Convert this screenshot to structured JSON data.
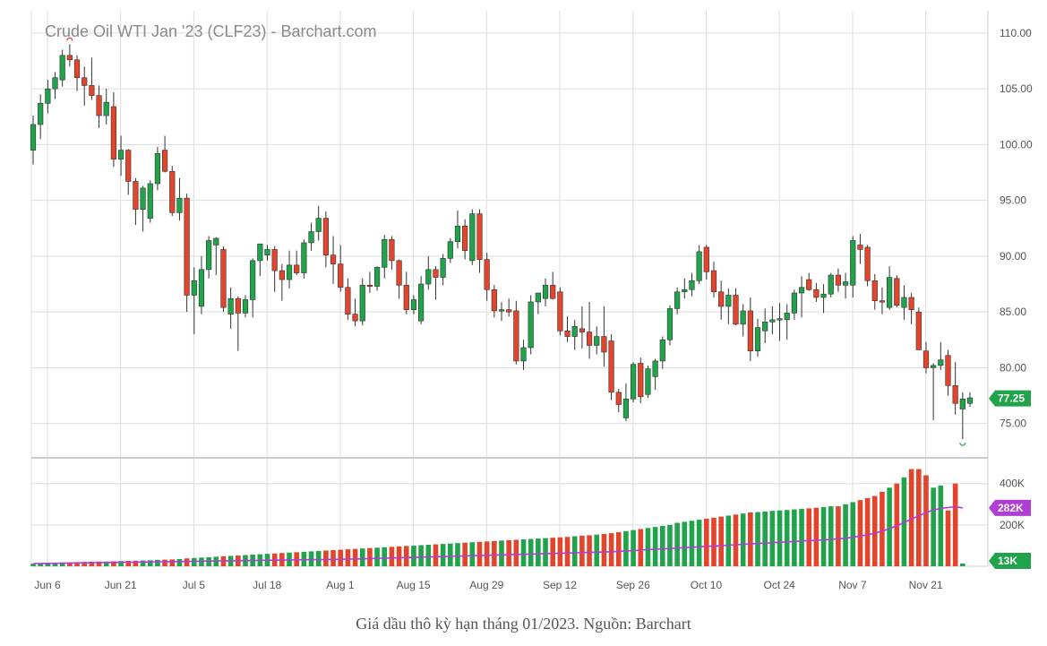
{
  "caption": "Giá dầu thô kỳ hạn tháng 01/2023. Nguồn: Barchart",
  "colors": {
    "up": "#20a34a",
    "down": "#e2452b",
    "ma": "#b03ed6",
    "grid": "#dddddd",
    "last_price_badge": "#20a34a",
    "ma_badge": "#b03ed6"
  },
  "chart_data": {
    "type": "candlestick",
    "title": "Crude Oil WTI Jan '23 (CLF23) - Barchart.com",
    "price_axis": {
      "ticks": [
        "110.00",
        "105.00",
        "100.00",
        "95.00",
        "90.00",
        "85.00",
        "80.00",
        "75.00"
      ],
      "ylim": [
        72,
        112
      ],
      "last_price": "77.25"
    },
    "volume_axis": {
      "ticks": [
        "400K",
        "200K"
      ],
      "ylim": [
        0,
        520000
      ],
      "ma_label": "282K",
      "last_volume_label": "13K"
    },
    "x_labels": [
      "Jun 6",
      "Jun 21",
      "Jul 5",
      "Jul 18",
      "Aug 1",
      "Aug 15",
      "Aug 29",
      "Sep 12",
      "Sep 26",
      "Oct 10",
      "Oct 24",
      "Nov 7",
      "Nov 21"
    ],
    "x_label_positions": [
      0,
      10,
      20,
      30,
      40,
      50,
      60,
      70,
      80,
      90,
      100,
      110,
      120
    ],
    "candles": [
      [
        99.5,
        102.6,
        98.2,
        101.8
      ],
      [
        101.8,
        104.5,
        100.5,
        103.7
      ],
      [
        103.7,
        105.8,
        102.8,
        105.0
      ],
      [
        105.0,
        106.5,
        104.1,
        106.0
      ],
      [
        105.8,
        108.5,
        105.2,
        108.0
      ],
      [
        108.0,
        109.0,
        107.0,
        107.6
      ],
      [
        107.6,
        108.0,
        104.8,
        106.0
      ],
      [
        106.0,
        107.0,
        103.5,
        105.3
      ],
      [
        105.3,
        107.8,
        104.0,
        104.4
      ],
      [
        104.4,
        105.3,
        101.5,
        102.6
      ],
      [
        102.6,
        105.0,
        101.8,
        103.8
      ],
      [
        103.4,
        104.7,
        98.0,
        98.7
      ],
      [
        98.7,
        100.8,
        97.2,
        99.5
      ],
      [
        99.5,
        99.6,
        95.5,
        96.7
      ],
      [
        96.7,
        97.0,
        92.8,
        94.2
      ],
      [
        94.2,
        96.3,
        92.2,
        96.1
      ],
      [
        93.4,
        96.8,
        93.0,
        96.5
      ],
      [
        96.5,
        99.8,
        95.9,
        99.2
      ],
      [
        99.5,
        100.8,
        97.5,
        97.6
      ],
      [
        97.6,
        98.1,
        93.6,
        93.9
      ],
      [
        93.9,
        97.0,
        93.2,
        95.2
      ],
      [
        95.2,
        95.6,
        85.0,
        86.5
      ],
      [
        86.5,
        89.0,
        83.0,
        87.8
      ],
      [
        85.5,
        90.0,
        84.8,
        88.8
      ],
      [
        88.8,
        91.8,
        88.0,
        91.4
      ],
      [
        91.0,
        91.7,
        88.3,
        91.6
      ],
      [
        90.6,
        90.9,
        85.0,
        85.4
      ],
      [
        84.8,
        87.2,
        83.5,
        86.2
      ],
      [
        86.2,
        86.4,
        81.5,
        84.9
      ],
      [
        84.9,
        86.5,
        84.5,
        86.1
      ],
      [
        86.1,
        89.8,
        84.5,
        89.6
      ],
      [
        89.6,
        91.0,
        88.2,
        91.1
      ],
      [
        90.1,
        91.0,
        89.6,
        90.6
      ],
      [
        90.6,
        90.9,
        86.8,
        88.7
      ],
      [
        88.7,
        89.3,
        86.0,
        87.9
      ],
      [
        87.9,
        90.5,
        87.1,
        89.2
      ],
      [
        89.2,
        90.5,
        88.3,
        88.5
      ],
      [
        88.5,
        91.5,
        88.0,
        91.2
      ],
      [
        91.2,
        93.0,
        90.5,
        92.2
      ],
      [
        92.2,
        94.5,
        91.4,
        93.4
      ],
      [
        93.4,
        94.0,
        89.0,
        90.1
      ],
      [
        90.1,
        91.8,
        87.5,
        89.3
      ],
      [
        89.3,
        91.0,
        86.8,
        87.2
      ],
      [
        87.2,
        88.0,
        84.3,
        84.8
      ],
      [
        84.8,
        86.2,
        83.7,
        84.2
      ],
      [
        84.2,
        88.0,
        83.8,
        87.4
      ],
      [
        87.4,
        88.6,
        86.7,
        87.3
      ],
      [
        87.3,
        89.1,
        86.9,
        89.0
      ],
      [
        89.0,
        91.9,
        88.0,
        91.5
      ],
      [
        91.5,
        91.8,
        88.8,
        89.6
      ],
      [
        89.6,
        89.7,
        86.2,
        87.4
      ],
      [
        87.4,
        88.6,
        84.8,
        85.2
      ],
      [
        85.2,
        86.5,
        84.8,
        86.1
      ],
      [
        84.2,
        88.2,
        83.9,
        87.5
      ],
      [
        87.5,
        90.0,
        87.0,
        88.8
      ],
      [
        88.8,
        89.1,
        86.1,
        88.1
      ],
      [
        88.1,
        90.2,
        87.4,
        89.8
      ],
      [
        89.8,
        91.6,
        89.4,
        91.3
      ],
      [
        91.3,
        94.1,
        90.7,
        92.7
      ],
      [
        92.7,
        93.3,
        89.7,
        90.5
      ],
      [
        89.6,
        94.2,
        89.2,
        93.8
      ],
      [
        93.8,
        94.2,
        88.5,
        89.7
      ],
      [
        89.7,
        90.3,
        86.0,
        87.0
      ],
      [
        87.0,
        87.4,
        84.5,
        85.1
      ],
      [
        85.1,
        85.9,
        84.2,
        85.2
      ],
      [
        85.2,
        86.2,
        84.6,
        85.0
      ],
      [
        85.1,
        86.0,
        80.3,
        80.6
      ],
      [
        80.6,
        82.5,
        79.8,
        81.8
      ],
      [
        81.8,
        86.5,
        81.2,
        85.9
      ],
      [
        85.9,
        86.7,
        84.8,
        86.7
      ],
      [
        86.2,
        88.0,
        85.5,
        87.4
      ],
      [
        87.4,
        88.6,
        86.1,
        86.2
      ],
      [
        86.8,
        87.2,
        82.9,
        83.3
      ],
      [
        83.3,
        84.6,
        82.3,
        82.8
      ],
      [
        82.8,
        84.3,
        81.6,
        83.7
      ],
      [
        83.5,
        85.5,
        81.7,
        83.2
      ],
      [
        83.2,
        85.9,
        80.8,
        82.0
      ],
      [
        82.0,
        83.7,
        81.2,
        82.8
      ],
      [
        82.8,
        85.5,
        80.1,
        81.4
      ],
      [
        82.4,
        83.0,
        77.1,
        77.8
      ],
      [
        77.8,
        78.1,
        76.0,
        76.7
      ],
      [
        75.5,
        78.6,
        75.2,
        77.2
      ],
      [
        77.2,
        80.5,
        76.9,
        80.3
      ],
      [
        80.4,
        80.9,
        76.8,
        77.4
      ],
      [
        77.6,
        80.2,
        77.3,
        79.9
      ],
      [
        79.2,
        80.8,
        78.0,
        80.6
      ],
      [
        80.6,
        82.8,
        79.9,
        82.5
      ],
      [
        82.5,
        85.6,
        82.0,
        85.3
      ],
      [
        85.3,
        87.2,
        84.8,
        86.8
      ],
      [
        86.8,
        88.0,
        86.2,
        87.0
      ],
      [
        87.0,
        88.5,
        86.4,
        87.8
      ],
      [
        87.8,
        91.0,
        87.5,
        90.4
      ],
      [
        90.8,
        91.0,
        87.9,
        88.6
      ],
      [
        88.7,
        89.5,
        86.3,
        86.8
      ],
      [
        86.8,
        87.8,
        84.3,
        85.5
      ],
      [
        85.5,
        87.1,
        83.9,
        86.5
      ],
      [
        86.5,
        87.1,
        83.8,
        83.9
      ],
      [
        83.9,
        85.7,
        82.8,
        85.1
      ],
      [
        85.1,
        86.3,
        80.6,
        81.5
      ],
      [
        81.5,
        84.4,
        81.0,
        83.6
      ],
      [
        83.3,
        85.3,
        82.2,
        84.1
      ],
      [
        84.1,
        85.5,
        83.0,
        84.3
      ],
      [
        84.3,
        85.8,
        82.4,
        84.4
      ],
      [
        84.3,
        85.7,
        82.5,
        84.9
      ],
      [
        84.9,
        87.0,
        84.3,
        86.7
      ],
      [
        86.7,
        88.2,
        84.5,
        87.2
      ],
      [
        87.9,
        88.5,
        86.9,
        87.0
      ],
      [
        87.0,
        87.6,
        85.9,
        86.3
      ],
      [
        86.3,
        87.5,
        84.9,
        86.6
      ],
      [
        86.6,
        88.5,
        86.3,
        88.3
      ],
      [
        88.3,
        88.9,
        86.8,
        87.4
      ],
      [
        87.4,
        88.5,
        86.2,
        87.7
      ],
      [
        87.4,
        91.8,
        86.3,
        91.4
      ],
      [
        91.0,
        92.0,
        89.3,
        90.6
      ],
      [
        90.8,
        91.0,
        87.3,
        87.8
      ],
      [
        87.8,
        88.4,
        85.2,
        86.0
      ],
      [
        86.0,
        87.2,
        84.8,
        85.9
      ],
      [
        85.4,
        89.1,
        85.2,
        88.1
      ],
      [
        88.0,
        88.3,
        85.4,
        85.6
      ],
      [
        85.4,
        87.4,
        84.3,
        86.3
      ],
      [
        86.3,
        86.7,
        83.9,
        85.2
      ],
      [
        85.0,
        85.4,
        81.8,
        81.6
      ],
      [
        81.5,
        82.3,
        79.5,
        80.0
      ],
      [
        80.0,
        80.4,
        75.3,
        80.2
      ],
      [
        80.2,
        82.3,
        79.8,
        80.7
      ],
      [
        81.1,
        81.6,
        77.5,
        78.4
      ],
      [
        78.4,
        80.5,
        75.8,
        76.8
      ],
      [
        76.3,
        77.8,
        73.6,
        77.2
      ],
      [
        76.8,
        77.8,
        76.5,
        77.3
      ]
    ],
    "volumes": [
      12000,
      13000,
      15000,
      16000,
      18000,
      19000,
      20000,
      21000,
      22000,
      23000,
      23000,
      24000,
      25000,
      26000,
      27000,
      28000,
      29000,
      31000,
      32000,
      33000,
      35000,
      38000,
      40000,
      42000,
      44000,
      46000,
      48000,
      50000,
      52000,
      54000,
      56000,
      58000,
      60000,
      62000,
      64000,
      66000,
      68000,
      70000,
      72000,
      74000,
      76000,
      78000,
      80000,
      82000,
      84000,
      86000,
      88000,
      90000,
      92000,
      94000,
      96000,
      98000,
      100000,
      102000,
      104000,
      106000,
      108000,
      110000,
      112000,
      114000,
      116000,
      118000,
      120000,
      122000,
      124000,
      126000,
      128000,
      130000,
      132000,
      134000,
      136000,
      138000,
      140000,
      142000,
      145000,
      148000,
      150000,
      153000,
      156000,
      160000,
      165000,
      170000,
      175000,
      180000,
      185000,
      190000,
      195000,
      200000,
      210000,
      215000,
      220000,
      225000,
      230000,
      235000,
      240000,
      245000,
      250000,
      255000,
      260000,
      262000,
      265000,
      268000,
      270000,
      272000,
      275000,
      278000,
      280000,
      283000,
      286000,
      290000,
      290000,
      300000,
      310000,
      320000,
      330000,
      340000,
      360000,
      380000,
      400000,
      430000,
      470000,
      470000,
      440000,
      380000,
      390000,
      270000,
      400000,
      13000
    ],
    "volume_ma": [
      13000,
      13500,
      14000,
      14500,
      15000,
      15500,
      16000,
      16500,
      17000,
      17500,
      18000,
      18500,
      19000,
      19500,
      20000,
      20500,
      21000,
      21500,
      22000,
      22500,
      23000,
      23500,
      24000,
      24500,
      25000,
      25500,
      26000,
      26500,
      27000,
      27500,
      28000,
      28500,
      29000,
      29500,
      30000,
      30500,
      31000,
      31500,
      32000,
      32500,
      33000,
      33500,
      34000,
      34500,
      35000,
      36000,
      37000,
      38000,
      39000,
      40000,
      41000,
      42000,
      43000,
      44000,
      45000,
      46000,
      47000,
      48000,
      49000,
      50000,
      51000,
      52000,
      53000,
      54000,
      55000,
      56000,
      57000,
      58000,
      59000,
      60000,
      61000,
      62000,
      63000,
      64000,
      65000,
      66000,
      67000,
      68000,
      69000,
      70000,
      72000,
      74000,
      76000,
      78000,
      80000,
      82000,
      84000,
      86000,
      88000,
      90000,
      92000,
      94000,
      96000,
      98000,
      100000,
      102000,
      104000,
      106000,
      108000,
      110000,
      112000,
      114000,
      116000,
      118000,
      120000,
      122000,
      124000,
      126000,
      128000,
      130000,
      132000,
      136000,
      140000,
      146000,
      152000,
      160000,
      170000,
      182000,
      196000,
      212000,
      228000,
      244000,
      260000,
      272000,
      280000,
      284000,
      288000,
      282000
    ]
  }
}
